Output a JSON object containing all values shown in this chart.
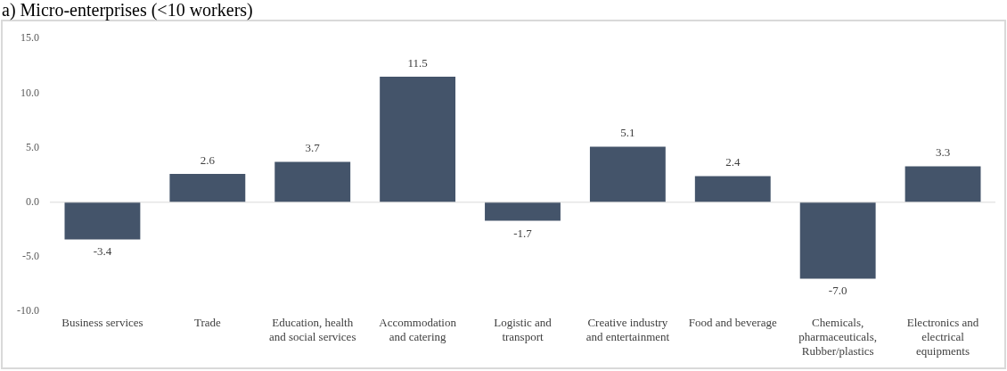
{
  "chart_data": {
    "type": "bar",
    "title": "a) Micro-enterprises (<10 workers)",
    "categories": [
      "Business services",
      "Trade",
      "Education, health and social services",
      "Accommodation and catering",
      "Logistic and transport",
      "Creative industry and entertainment",
      "Food and beverage",
      "Chemicals, pharmaceuticals, Rubber/plastics",
      "Electronics and electrical equipments"
    ],
    "values": [
      -3.4,
      2.6,
      3.7,
      11.5,
      -1.7,
      5.1,
      2.4,
      -7.0,
      3.3
    ],
    "value_labels": [
      "-3.4",
      "2.6",
      "3.7",
      "11.5",
      "-1.7",
      "5.1",
      "2.4",
      "-7.0",
      "3.3"
    ],
    "color": "#44546a",
    "ylim": [
      -10,
      15
    ],
    "yticks": [
      {
        "value": -10,
        "label": "-10.0"
      },
      {
        "value": -5,
        "label": "-5.0"
      },
      {
        "value": 0,
        "label": "0.0"
      },
      {
        "value": 5,
        "label": "5.0"
      },
      {
        "value": 10,
        "label": "10.0"
      },
      {
        "value": 15,
        "label": "15.0"
      }
    ],
    "legend": false
  }
}
